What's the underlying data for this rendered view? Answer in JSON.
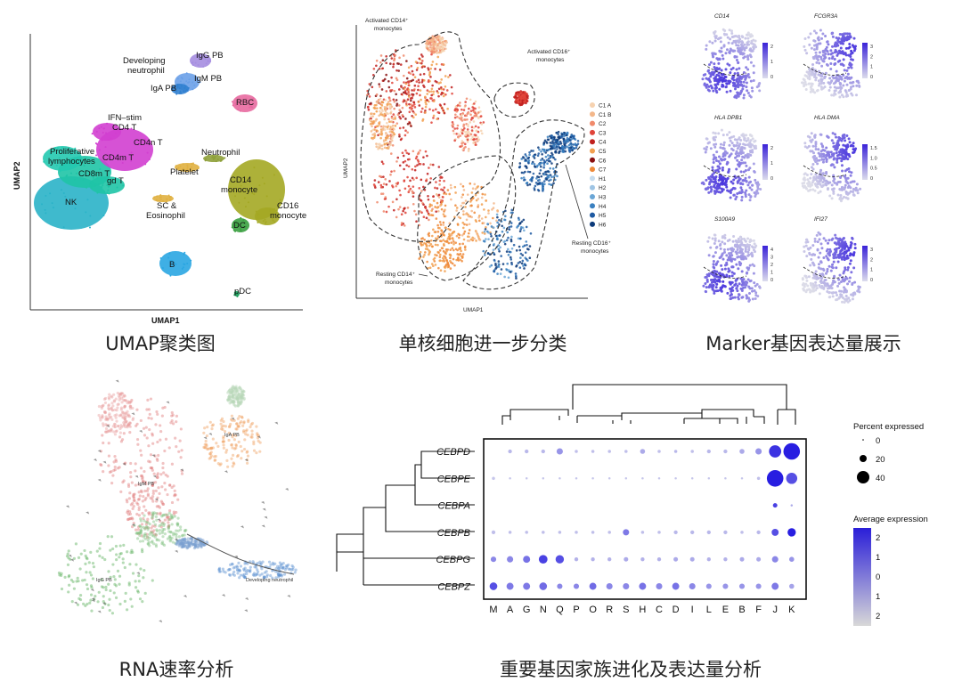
{
  "captions": {
    "umap": "UMAP聚类图",
    "mono": "单核细胞进一步分类",
    "marker": "Marker基因表达量展示",
    "rna": "RNA速率分析",
    "family": "重要基因家族进化及表达量分析"
  },
  "umap": {
    "xlabel": "UMAP1",
    "ylabel": "UMAP2",
    "labels": {
      "igg_pb": "IgG PB",
      "dev_neut": "Developing",
      "dev_neut2": "neutrophil",
      "igm_pb": "IgM PB",
      "iga_pb": "IgA PB",
      "rbc": "RBC",
      "ifn1": "IFN–stim",
      "ifn2": "CD4 T",
      "cd4n": "CD4n T",
      "prolif1": "Proliferative",
      "prolif2": "lymphocytes",
      "cd4m": "CD4m T",
      "cd8m": "CD8m T",
      "gdt": "gd T",
      "nk": "NK",
      "neutrophil": "Neutrophil",
      "platelet": "Platelet",
      "cd14_1": "CD14",
      "cd14_2": "monocyte",
      "sc1": "SC &",
      "sc2": "Eosinophil",
      "cd16_1": "CD16",
      "cd16_2": "monocyte",
      "dc": "DC",
      "b": "B",
      "pdc": "pDC"
    },
    "colors": {
      "nk": "#2ab3c8",
      "cd8": "#1fc4a6",
      "prolif": "#23c9b0",
      "cd4": "#d23fd0",
      "mono": "#a4a824",
      "b": "#2aa6e2",
      "rbc": "#e86aa0",
      "pb": "#a58de0",
      "platelet": "#e0b040",
      "neut": "#8ea03a",
      "pdc": "#22a060"
    }
  },
  "mono": {
    "xlabel": "UMAP1",
    "ylabel": "UMAP2",
    "annotations": {
      "act14_1": "Activated CD14⁺",
      "act14_2": "monocytes",
      "act16_1": "Activated CD16⁺",
      "act16_2": "monocytes",
      "rest16_1": "Resting CD16⁺",
      "rest16_2": "monocytes",
      "rest14_1": "Resting CD14⁺",
      "rest14_2": "monocytes"
    },
    "legend": [
      {
        "name": "C1 A",
        "color": "#f6d2b0"
      },
      {
        "name": "C1 B",
        "color": "#f3b78a"
      },
      {
        "name": "C2",
        "color": "#f08a6c"
      },
      {
        "name": "C3",
        "color": "#e0443a"
      },
      {
        "name": "C4",
        "color": "#c0201e"
      },
      {
        "name": "C5",
        "color": "#f2a050"
      },
      {
        "name": "C6",
        "color": "#8a1010"
      },
      {
        "name": "C7",
        "color": "#ee8a3a"
      },
      {
        "name": "H1",
        "color": "#c6dcee"
      },
      {
        "name": "H2",
        "color": "#9ec4e4"
      },
      {
        "name": "H3",
        "color": "#6aa6d6"
      },
      {
        "name": "H4",
        "color": "#3a80c0"
      },
      {
        "name": "H5",
        "color": "#1e5aa2"
      },
      {
        "name": "H6",
        "color": "#0c3a7a"
      }
    ]
  },
  "marker": {
    "genes": [
      {
        "name": "CD14",
        "ticks": [
          "2",
          "1",
          "0"
        ]
      },
      {
        "name": "FCGR3A",
        "ticks": [
          "3",
          "2",
          "1",
          "0"
        ]
      },
      {
        "name": "HLA_DPB1",
        "ticks": [
          "2",
          "1",
          "0"
        ]
      },
      {
        "name": "HLA_DMA",
        "ticks": [
          "1.5",
          "1.0",
          "0.5",
          "0"
        ]
      },
      {
        "name": "S100A9",
        "ticks": [
          "4",
          "3",
          "2",
          "1",
          "0"
        ]
      },
      {
        "name": "IFI27",
        "ticks": [
          "3",
          "2",
          "1",
          "0"
        ]
      }
    ]
  },
  "rna": {
    "labels": {
      "iga": "IgA PB",
      "igm": "IgM PB",
      "igg": "IgG PB",
      "dev": "Developing neutrophil"
    }
  },
  "chart_data": {
    "type": "dotplot",
    "rows": [
      "CEBPD",
      "CEBPE",
      "CEBPA",
      "CEBPB",
      "CEBPG",
      "CEBPZ"
    ],
    "columns": [
      "M",
      "A",
      "G",
      "N",
      "Q",
      "P",
      "O",
      "R",
      "S",
      "H",
      "C",
      "D",
      "I",
      "L",
      "E",
      "B",
      "F",
      "J",
      "K"
    ],
    "percent_expressed": [
      [
        0,
        3,
        3,
        3,
        8,
        2,
        2,
        2,
        2,
        5,
        2,
        2,
        2,
        3,
        3,
        5,
        8,
        30,
        55
      ],
      [
        2,
        1,
        1,
        1,
        1,
        1,
        1,
        1,
        1,
        1,
        1,
        1,
        1,
        1,
        1,
        1,
        2,
        55,
        25
      ],
      [
        0,
        0,
        0,
        0,
        0,
        0,
        0,
        0,
        0,
        0,
        0,
        0,
        0,
        0,
        0,
        0,
        0,
        4,
        1
      ],
      [
        3,
        2,
        2,
        2,
        2,
        2,
        2,
        2,
        8,
        2,
        2,
        3,
        3,
        3,
        3,
        2,
        3,
        10,
        14
      ],
      [
        6,
        8,
        10,
        15,
        14,
        3,
        3,
        3,
        4,
        3,
        3,
        4,
        4,
        3,
        3,
        4,
        4,
        8,
        5
      ],
      [
        12,
        10,
        10,
        12,
        6,
        6,
        10,
        8,
        8,
        10,
        8,
        10,
        8,
        6,
        6,
        6,
        6,
        10,
        5
      ]
    ],
    "avg_expression": [
      [
        0,
        0.3,
        0.3,
        0.3,
        0.8,
        0.2,
        0.2,
        0.2,
        0.2,
        0.5,
        0.2,
        0.3,
        0.2,
        0.3,
        0.3,
        0.5,
        0.8,
        2.2,
        2.5
      ],
      [
        0.1,
        0.1,
        0.1,
        0.1,
        0.1,
        0.1,
        0.1,
        0.1,
        0.1,
        0.1,
        0.1,
        0.1,
        0.1,
        0.1,
        0.1,
        0.1,
        0.2,
        2.5,
        1.8
      ],
      [
        0,
        0,
        0,
        0,
        0,
        0,
        0,
        0,
        0,
        0,
        0,
        0,
        0,
        0,
        0,
        0,
        0,
        2.0,
        0.5
      ],
      [
        0.2,
        0.2,
        0.2,
        0.2,
        0.2,
        0.2,
        0.2,
        0.2,
        1.2,
        0.2,
        0.2,
        0.3,
        0.3,
        0.3,
        0.3,
        0.2,
        0.3,
        1.8,
        2.5
      ],
      [
        1.0,
        1.0,
        1.3,
        2.0,
        1.8,
        0.4,
        0.4,
        0.4,
        0.5,
        0.4,
        0.4,
        0.5,
        0.5,
        0.4,
        0.4,
        0.5,
        0.5,
        1.0,
        0.8
      ],
      [
        1.8,
        1.2,
        1.2,
        1.4,
        1.0,
        1.0,
        1.4,
        1.0,
        1.0,
        1.3,
        1.0,
        1.3,
        1.0,
        0.8,
        0.8,
        0.8,
        0.8,
        1.2,
        0.6
      ]
    ],
    "size_legend": {
      "title": "Percent expressed",
      "values": [
        "0",
        "20",
        "40"
      ]
    },
    "color_legend": {
      "title": "Average expression",
      "ticks": [
        "2",
        "1",
        "0",
        "1",
        "2"
      ]
    }
  }
}
